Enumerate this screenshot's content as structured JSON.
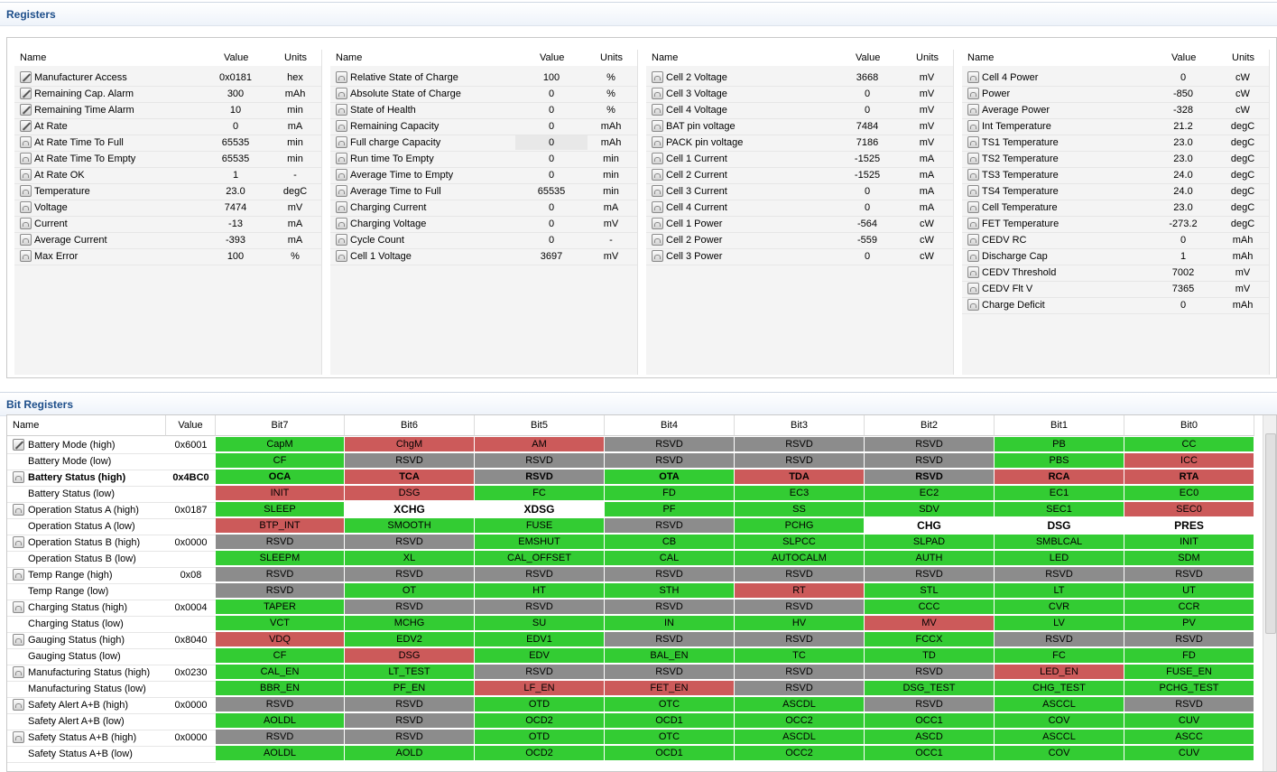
{
  "registers_title": "Registers",
  "bit_registers_title": "Bit Registers",
  "reg_headers": {
    "name": "Name",
    "value": "Value",
    "units": "Units"
  },
  "reg_tables": [
    [
      {
        "icon": "edit",
        "name": "Manufacturer Access",
        "value": "0x0181",
        "units": "hex"
      },
      {
        "icon": "edit",
        "name": "Remaining Cap. Alarm",
        "value": "300",
        "units": "mAh"
      },
      {
        "icon": "edit",
        "name": "Remaining Time Alarm",
        "value": "10",
        "units": "min"
      },
      {
        "icon": "edit",
        "name": "At Rate",
        "value": "0",
        "units": "mA"
      },
      {
        "icon": "lock",
        "name": "At Rate Time To Full",
        "value": "65535",
        "units": "min"
      },
      {
        "icon": "lock",
        "name": "At Rate Time To Empty",
        "value": "65535",
        "units": "min"
      },
      {
        "icon": "lock",
        "name": "At Rate OK",
        "value": "1",
        "units": "-"
      },
      {
        "icon": "lock",
        "name": "Temperature",
        "value": "23.0",
        "units": "degC"
      },
      {
        "icon": "lock",
        "name": "Voltage",
        "value": "7474",
        "units": "mV"
      },
      {
        "icon": "lock",
        "name": "Current",
        "value": "-13",
        "units": "mA"
      },
      {
        "icon": "lock",
        "name": "Average Current",
        "value": "-393",
        "units": "mA"
      },
      {
        "icon": "lock",
        "name": "Max Error",
        "value": "100",
        "units": "%"
      }
    ],
    [
      {
        "icon": "lock",
        "name": "Relative State of Charge",
        "value": "100",
        "units": "%"
      },
      {
        "icon": "lock",
        "name": "Absolute State of Charge",
        "value": "0",
        "units": "%"
      },
      {
        "icon": "lock",
        "name": "State of Health",
        "value": "0",
        "units": "%"
      },
      {
        "icon": "lock",
        "name": "Remaining Capacity",
        "value": "0",
        "units": "mAh"
      },
      {
        "icon": "lock",
        "name": "Full charge Capacity",
        "value": "0",
        "units": "mAh"
      },
      {
        "icon": "lock",
        "name": "Run time To Empty",
        "value": "0",
        "units": "min"
      },
      {
        "icon": "lock",
        "name": "Average Time to Empty",
        "value": "0",
        "units": "min"
      },
      {
        "icon": "lock",
        "name": "Average Time to Full",
        "value": "65535",
        "units": "min"
      },
      {
        "icon": "lock",
        "name": "Charging Current",
        "value": "0",
        "units": "mA"
      },
      {
        "icon": "lock",
        "name": "Charging Voltage",
        "value": "0",
        "units": "mV"
      },
      {
        "icon": "lock",
        "name": "Cycle Count",
        "value": "0",
        "units": "-"
      },
      {
        "icon": "lock",
        "name": "Cell 1 Voltage",
        "value": "3697",
        "units": "mV"
      }
    ],
    [
      {
        "icon": "lock",
        "name": "Cell 2 Voltage",
        "value": "3668",
        "units": "mV"
      },
      {
        "icon": "lock",
        "name": "Cell 3 Voltage",
        "value": "0",
        "units": "mV"
      },
      {
        "icon": "lock",
        "name": "Cell 4 Voltage",
        "value": "0",
        "units": "mV"
      },
      {
        "icon": "lock",
        "name": "BAT pin voltage",
        "value": "7484",
        "units": "mV"
      },
      {
        "icon": "lock",
        "name": "PACK pin voltage",
        "value": "7186",
        "units": "mV"
      },
      {
        "icon": "lock",
        "name": "Cell 1 Current",
        "value": "-1525",
        "units": "mA"
      },
      {
        "icon": "lock",
        "name": "Cell 2 Current",
        "value": "-1525",
        "units": "mA"
      },
      {
        "icon": "lock",
        "name": "Cell 3 Current",
        "value": "0",
        "units": "mA"
      },
      {
        "icon": "lock",
        "name": "Cell 4 Current",
        "value": "0",
        "units": "mA"
      },
      {
        "icon": "lock",
        "name": "Cell 1 Power",
        "value": "-564",
        "units": "cW"
      },
      {
        "icon": "lock",
        "name": "Cell 2 Power",
        "value": "-559",
        "units": "cW"
      },
      {
        "icon": "lock",
        "name": "Cell 3 Power",
        "value": "0",
        "units": "cW"
      }
    ],
    [
      {
        "icon": "lock",
        "name": "Cell 4 Power",
        "value": "0",
        "units": "cW"
      },
      {
        "icon": "lock",
        "name": "Power",
        "value": "-850",
        "units": "cW"
      },
      {
        "icon": "lock",
        "name": "Average Power",
        "value": "-328",
        "units": "cW"
      },
      {
        "icon": "lock",
        "name": "Int Temperature",
        "value": "21.2",
        "units": "degC"
      },
      {
        "icon": "lock",
        "name": "TS1 Temperature",
        "value": "23.0",
        "units": "degC"
      },
      {
        "icon": "lock",
        "name": "TS2 Temperature",
        "value": "23.0",
        "units": "degC"
      },
      {
        "icon": "lock",
        "name": "TS3 Temperature",
        "value": "24.0",
        "units": "degC"
      },
      {
        "icon": "lock",
        "name": "TS4 Temperature",
        "value": "24.0",
        "units": "degC"
      },
      {
        "icon": "lock",
        "name": "Cell Temperature",
        "value": "23.0",
        "units": "degC"
      },
      {
        "icon": "lock",
        "name": "FET Temperature",
        "value": "-273.2",
        "units": "degC"
      },
      {
        "icon": "lock",
        "name": "CEDV RC",
        "value": "0",
        "units": "mAh"
      },
      {
        "icon": "lock",
        "name": "Discharge Cap",
        "value": "1",
        "units": "mAh"
      },
      {
        "icon": "lock",
        "name": "CEDV Threshold",
        "value": "7002",
        "units": "mV"
      },
      {
        "icon": "lock",
        "name": "CEDV Flt V",
        "value": "7365",
        "units": "mV"
      },
      {
        "icon": "lock",
        "name": "Charge Deficit",
        "value": "0",
        "units": "mAh"
      }
    ]
  ],
  "bit_headers": [
    "Name",
    "Value",
    "Bit7",
    "Bit6",
    "Bit5",
    "Bit4",
    "Bit3",
    "Bit2",
    "Bit1",
    "Bit0"
  ],
  "bit_rows": [
    {
      "icon": "edit",
      "name": "Battery Mode (high)",
      "value": "0x6001",
      "bold": false,
      "bits": [
        [
          "CapM",
          "g"
        ],
        [
          "ChgM",
          "r"
        ],
        [
          "AM",
          "r"
        ],
        [
          "RSVD",
          "y"
        ],
        [
          "RSVD",
          "y"
        ],
        [
          "RSVD",
          "y"
        ],
        [
          "PB",
          "g"
        ],
        [
          "CC",
          "g"
        ]
      ]
    },
    {
      "icon": "",
      "name": "Battery Mode (low)",
      "value": "",
      "bold": false,
      "bits": [
        [
          "CF",
          "g"
        ],
        [
          "RSVD",
          "y"
        ],
        [
          "RSVD",
          "y"
        ],
        [
          "RSVD",
          "y"
        ],
        [
          "RSVD",
          "y"
        ],
        [
          "RSVD",
          "y"
        ],
        [
          "PBS",
          "g"
        ],
        [
          "ICC",
          "r"
        ]
      ]
    },
    {
      "icon": "lock",
      "name": "Battery Status (high)",
      "value": "0x4BC0",
      "bold": true,
      "bits": [
        [
          "OCA",
          "g"
        ],
        [
          "TCA",
          "r"
        ],
        [
          "RSVD",
          "y"
        ],
        [
          "OTA",
          "g"
        ],
        [
          "TDA",
          "r"
        ],
        [
          "RSVD",
          "y"
        ],
        [
          "RCA",
          "r"
        ],
        [
          "RTA",
          "r"
        ]
      ]
    },
    {
      "icon": "",
      "name": "Battery Status (low)",
      "value": "",
      "bold": false,
      "bits": [
        [
          "INIT",
          "r"
        ],
        [
          "DSG",
          "r"
        ],
        [
          "FC",
          "g"
        ],
        [
          "FD",
          "g"
        ],
        [
          "EC3",
          "g"
        ],
        [
          "EC2",
          "g"
        ],
        [
          "EC1",
          "g"
        ],
        [
          "EC0",
          "g"
        ]
      ]
    },
    {
      "icon": "lock",
      "name": "Operation Status A (high)",
      "value": "0x0187",
      "bold": false,
      "bits": [
        [
          "SLEEP",
          "g"
        ],
        [
          "XCHG",
          "w"
        ],
        [
          "XDSG",
          "w"
        ],
        [
          "PF",
          "g"
        ],
        [
          "SS",
          "g"
        ],
        [
          "SDV",
          "g"
        ],
        [
          "SEC1",
          "g"
        ],
        [
          "SEC0",
          "r"
        ]
      ]
    },
    {
      "icon": "",
      "name": "Operation Status A (low)",
      "value": "",
      "bold": false,
      "bits": [
        [
          "BTP_INT",
          "r"
        ],
        [
          "SMOOTH",
          "g"
        ],
        [
          "FUSE",
          "g"
        ],
        [
          "RSVD",
          "y"
        ],
        [
          "PCHG",
          "g"
        ],
        [
          "CHG",
          "w"
        ],
        [
          "DSG",
          "w"
        ],
        [
          "PRES",
          "w"
        ]
      ]
    },
    {
      "icon": "lock",
      "name": "Operation Status B (high)",
      "value": "0x0000",
      "bold": false,
      "bits": [
        [
          "RSVD",
          "y"
        ],
        [
          "RSVD",
          "y"
        ],
        [
          "EMSHUT",
          "g"
        ],
        [
          "CB",
          "g"
        ],
        [
          "SLPCC",
          "g"
        ],
        [
          "SLPAD",
          "g"
        ],
        [
          "SMBLCAL",
          "g"
        ],
        [
          "INIT",
          "g"
        ]
      ]
    },
    {
      "icon": "",
      "name": "Operation Status B (low)",
      "value": "",
      "bold": false,
      "bits": [
        [
          "SLEEPM",
          "g"
        ],
        [
          "XL",
          "g"
        ],
        [
          "CAL_OFFSET",
          "g"
        ],
        [
          "CAL",
          "g"
        ],
        [
          "AUTOCALM",
          "g"
        ],
        [
          "AUTH",
          "g"
        ],
        [
          "LED",
          "g"
        ],
        [
          "SDM",
          "g"
        ]
      ]
    },
    {
      "icon": "lock",
      "name": "Temp Range (high)",
      "value": "0x08",
      "bold": false,
      "bits": [
        [
          "RSVD",
          "y"
        ],
        [
          "RSVD",
          "y"
        ],
        [
          "RSVD",
          "y"
        ],
        [
          "RSVD",
          "y"
        ],
        [
          "RSVD",
          "y"
        ],
        [
          "RSVD",
          "y"
        ],
        [
          "RSVD",
          "y"
        ],
        [
          "RSVD",
          "y"
        ]
      ]
    },
    {
      "icon": "",
      "name": "Temp Range (low)",
      "value": "",
      "bold": false,
      "bits": [
        [
          "RSVD",
          "y"
        ],
        [
          "OT",
          "g"
        ],
        [
          "HT",
          "g"
        ],
        [
          "STH",
          "g"
        ],
        [
          "RT",
          "r"
        ],
        [
          "STL",
          "g"
        ],
        [
          "LT",
          "g"
        ],
        [
          "UT",
          "g"
        ]
      ]
    },
    {
      "icon": "lock",
      "name": "Charging Status (high)",
      "value": "0x0004",
      "bold": false,
      "bits": [
        [
          "TAPER",
          "g"
        ],
        [
          "RSVD",
          "y"
        ],
        [
          "RSVD",
          "y"
        ],
        [
          "RSVD",
          "y"
        ],
        [
          "RSVD",
          "y"
        ],
        [
          "CCC",
          "g"
        ],
        [
          "CVR",
          "g"
        ],
        [
          "CCR",
          "g"
        ]
      ]
    },
    {
      "icon": "",
      "name": "Charging Status (low)",
      "value": "",
      "bold": false,
      "bits": [
        [
          "VCT",
          "g"
        ],
        [
          "MCHG",
          "g"
        ],
        [
          "SU",
          "g"
        ],
        [
          "IN",
          "g"
        ],
        [
          "HV",
          "g"
        ],
        [
          "MV",
          "r"
        ],
        [
          "LV",
          "g"
        ],
        [
          "PV",
          "g"
        ]
      ]
    },
    {
      "icon": "lock",
      "name": "Gauging Status (high)",
      "value": "0x8040",
      "bold": false,
      "bits": [
        [
          "VDQ",
          "r"
        ],
        [
          "EDV2",
          "g"
        ],
        [
          "EDV1",
          "g"
        ],
        [
          "RSVD",
          "y"
        ],
        [
          "RSVD",
          "y"
        ],
        [
          "FCCX",
          "g"
        ],
        [
          "RSVD",
          "y"
        ],
        [
          "RSVD",
          "y"
        ]
      ]
    },
    {
      "icon": "",
      "name": "Gauging Status (low)",
      "value": "",
      "bold": false,
      "bits": [
        [
          "CF",
          "g"
        ],
        [
          "DSG",
          "r"
        ],
        [
          "EDV",
          "g"
        ],
        [
          "BAL_EN",
          "g"
        ],
        [
          "TC",
          "g"
        ],
        [
          "TD",
          "g"
        ],
        [
          "FC",
          "g"
        ],
        [
          "FD",
          "g"
        ]
      ]
    },
    {
      "icon": "lock",
      "name": "Manufacturing Status (high)",
      "value": "0x0230",
      "bold": false,
      "bits": [
        [
          "CAL_EN",
          "g"
        ],
        [
          "LT_TEST",
          "g"
        ],
        [
          "RSVD",
          "y"
        ],
        [
          "RSVD",
          "y"
        ],
        [
          "RSVD",
          "y"
        ],
        [
          "RSVD",
          "y"
        ],
        [
          "LED_EN",
          "r"
        ],
        [
          "FUSE_EN",
          "g"
        ]
      ]
    },
    {
      "icon": "",
      "name": "Manufacturing Status (low)",
      "value": "",
      "bold": false,
      "bits": [
        [
          "BBR_EN",
          "g"
        ],
        [
          "PF_EN",
          "g"
        ],
        [
          "LF_EN",
          "r"
        ],
        [
          "FET_EN",
          "r"
        ],
        [
          "RSVD",
          "y"
        ],
        [
          "DSG_TEST",
          "g"
        ],
        [
          "CHG_TEST",
          "g"
        ],
        [
          "PCHG_TEST",
          "g"
        ]
      ]
    },
    {
      "icon": "lock",
      "name": "Safety Alert A+B (high)",
      "value": "0x0000",
      "bold": false,
      "bits": [
        [
          "RSVD",
          "y"
        ],
        [
          "RSVD",
          "y"
        ],
        [
          "OTD",
          "g"
        ],
        [
          "OTC",
          "g"
        ],
        [
          "ASCDL",
          "g"
        ],
        [
          "RSVD",
          "y"
        ],
        [
          "ASCCL",
          "g"
        ],
        [
          "RSVD",
          "y"
        ]
      ]
    },
    {
      "icon": "",
      "name": "Safety Alert A+B (low)",
      "value": "",
      "bold": false,
      "bits": [
        [
          "AOLDL",
          "g"
        ],
        [
          "RSVD",
          "y"
        ],
        [
          "OCD2",
          "g"
        ],
        [
          "OCD1",
          "g"
        ],
        [
          "OCC2",
          "g"
        ],
        [
          "OCC1",
          "g"
        ],
        [
          "COV",
          "g"
        ],
        [
          "CUV",
          "g"
        ]
      ]
    },
    {
      "icon": "lock",
      "name": "Safety Status A+B (high)",
      "value": "0x0000",
      "bold": false,
      "bits": [
        [
          "RSVD",
          "y"
        ],
        [
          "RSVD",
          "y"
        ],
        [
          "OTD",
          "g"
        ],
        [
          "OTC",
          "g"
        ],
        [
          "ASCDL",
          "g"
        ],
        [
          "ASCD",
          "g"
        ],
        [
          "ASCCL",
          "g"
        ],
        [
          "ASCC",
          "g"
        ]
      ]
    },
    {
      "icon": "",
      "name": "Safety Status A+B (low)",
      "value": "",
      "bold": false,
      "bits": [
        [
          "AOLDL",
          "g"
        ],
        [
          "AOLD",
          "g"
        ],
        [
          "OCD2",
          "g"
        ],
        [
          "OCD1",
          "g"
        ],
        [
          "OCC2",
          "g"
        ],
        [
          "OCC1",
          "g"
        ],
        [
          "COV",
          "g"
        ],
        [
          "CUV",
          "g"
        ]
      ]
    }
  ]
}
